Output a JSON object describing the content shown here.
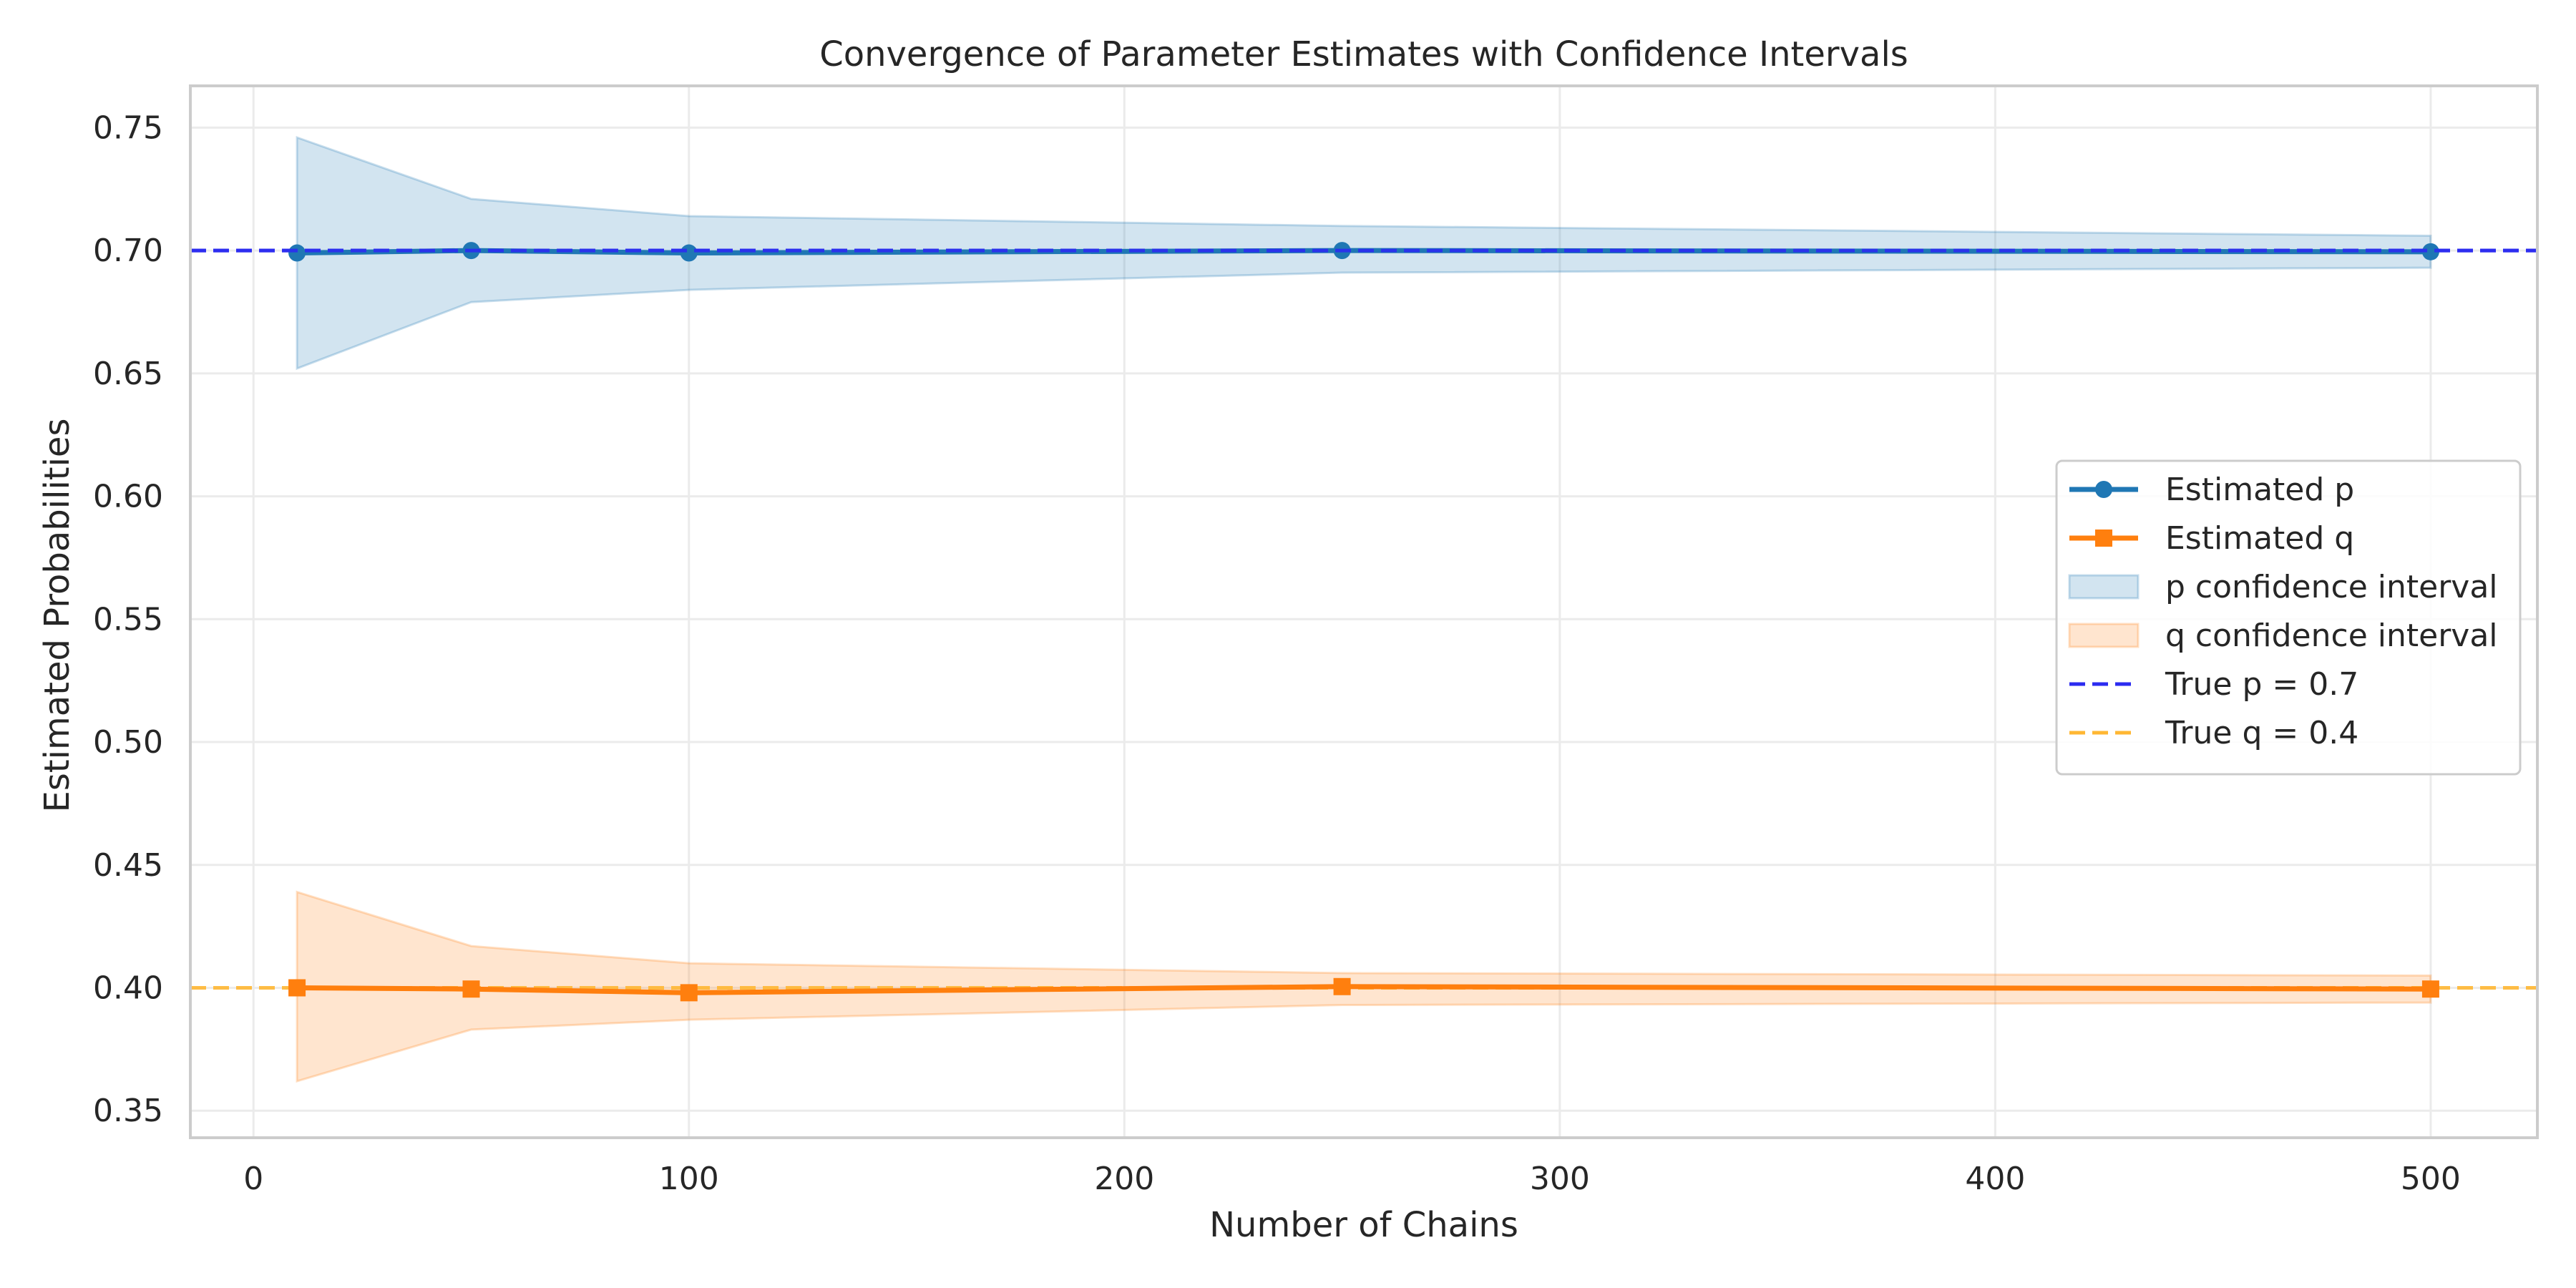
{
  "chart_data": {
    "type": "line",
    "title": "Convergence of Parameter Estimates with Confidence Intervals",
    "xlabel": "Number of Chains",
    "ylabel": "Estimated Probabilities",
    "xlim": [
      -14.5,
      524.5
    ],
    "ylim": [
      0.339,
      0.767
    ],
    "xticks": [
      0,
      100,
      200,
      300,
      400,
      500
    ],
    "xtick_labels": [
      "0",
      "100",
      "200",
      "300",
      "400",
      "500"
    ],
    "yticks": [
      0.35,
      0.4,
      0.45,
      0.5,
      0.55,
      0.6,
      0.65,
      0.7,
      0.75
    ],
    "ytick_labels": [
      "0.35",
      "0.40",
      "0.45",
      "0.50",
      "0.55",
      "0.60",
      "0.65",
      "0.70",
      "0.75"
    ],
    "grid": true,
    "legend_position": "center-right",
    "x": [
      10,
      50,
      100,
      250,
      500
    ],
    "series": [
      {
        "name": "Estimated p",
        "kind": "line",
        "marker": "circle",
        "color": "#1f77b4",
        "values": [
          0.699,
          0.7,
          0.699,
          0.7,
          0.6995
        ]
      },
      {
        "name": "Estimated q",
        "kind": "line",
        "marker": "square",
        "color": "#ff7f0e",
        "values": [
          0.4,
          0.3995,
          0.398,
          0.4005,
          0.3995
        ]
      }
    ],
    "bands": [
      {
        "name": "p confidence interval",
        "color": "#1f77b4",
        "lower": [
          0.652,
          0.679,
          0.684,
          0.691,
          0.693
        ],
        "upper": [
          0.746,
          0.721,
          0.714,
          0.71,
          0.706
        ]
      },
      {
        "name": "q confidence interval",
        "color": "#ff7f0e",
        "lower": [
          0.362,
          0.383,
          0.387,
          0.393,
          0.394
        ],
        "upper": [
          0.439,
          0.417,
          0.41,
          0.406,
          0.405
        ]
      }
    ],
    "reference_lines": [
      {
        "name": "True p = 0.7",
        "value": 0.7,
        "color": "#2b2bf0"
      },
      {
        "name": "True q = 0.4",
        "value": 0.4,
        "color": "#ffb733"
      }
    ]
  }
}
